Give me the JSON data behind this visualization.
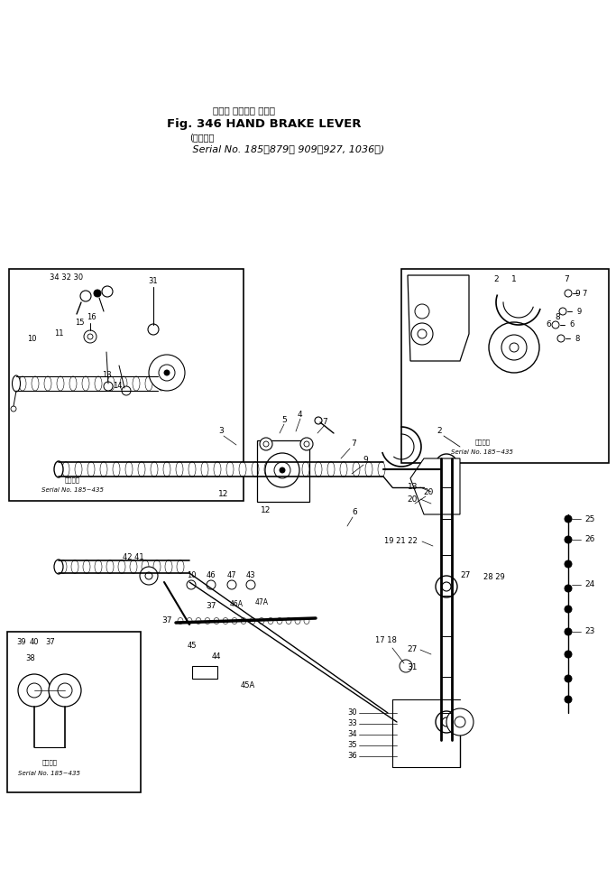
{
  "title_jp": "ハンド ブレーキ レバー",
  "title_en": "Fig. 346 HAND BRAKE LEVER",
  "sub_jp": "適用号機",
  "sub_en": "Serial No. 185～879， 909～927, 1036～",
  "bg": "#ffffff",
  "ink": "#000000",
  "sn_label_jp": "適用号機",
  "sn_label_en1": "Serial No. 185~435",
  "sn_label_en2": "Serial No. 185~435",
  "sn_label_en3": "Serial No. 185~435",
  "sn_label_en_right": "Serial No. 185~435"
}
